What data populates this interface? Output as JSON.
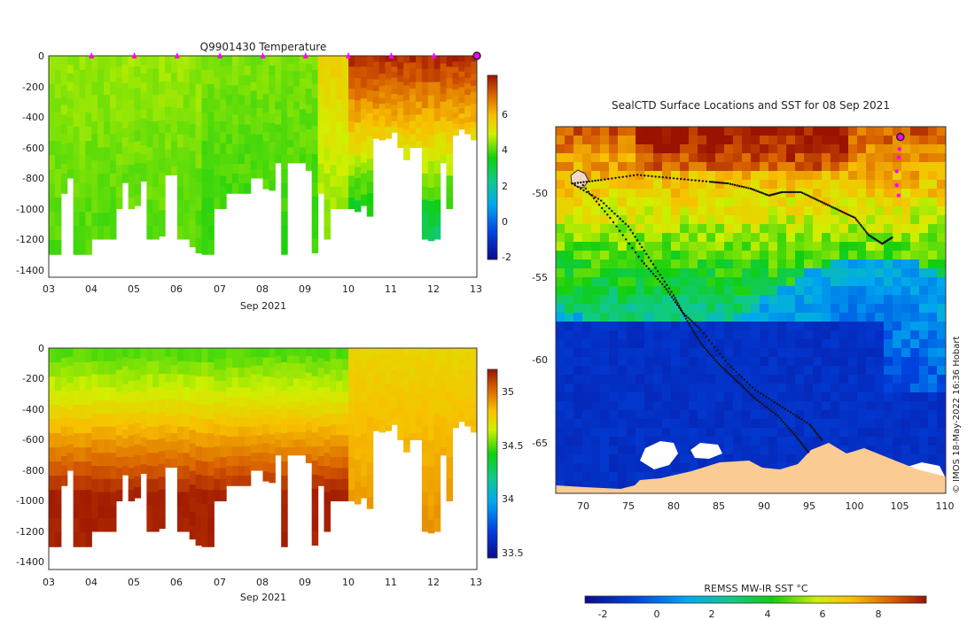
{
  "colors": {
    "land": "#fbcb94",
    "marker": "#ff00ff",
    "background": "#ffffff"
  },
  "chart_data": [
    {
      "id": "temperature",
      "type": "heatmap",
      "title": "Q9901430  Temperature",
      "xlabel": "Sep 2021",
      "ylabel": "",
      "x_tick_labels": [
        "03",
        "04",
        "05",
        "06",
        "07",
        "08",
        "09",
        "10",
        "11",
        "12",
        "13"
      ],
      "xlim": [
        3,
        13
      ],
      "ylim": [
        -1450,
        0
      ],
      "y_ticks": [
        0,
        -200,
        -400,
        -600,
        -800,
        -1000,
        -1200,
        -1400
      ],
      "colorbar": {
        "range": [
          -2.6,
          7.8
        ],
        "ticks": [
          -2,
          0,
          2,
          4,
          6
        ]
      },
      "marker_days": [
        4,
        5,
        6,
        7,
        8,
        9,
        10,
        11,
        12
      ],
      "current_day": 13
    },
    {
      "id": "salinity",
      "type": "heatmap",
      "title": "",
      "xlabel": "Sep 2021",
      "ylabel": "",
      "x_tick_labels": [
        "03",
        "04",
        "05",
        "06",
        "07",
        "08",
        "09",
        "10",
        "11",
        "12",
        "13"
      ],
      "xlim": [
        3,
        13
      ],
      "ylim": [
        -1450,
        0
      ],
      "y_ticks": [
        0,
        -200,
        -400,
        -600,
        -800,
        -1000,
        -1200,
        -1400
      ],
      "colorbar": {
        "range": [
          33.45,
          35.2
        ],
        "ticks": [
          33.5,
          34,
          34.5,
          35
        ]
      }
    },
    {
      "id": "sst-map",
      "type": "heatmap",
      "title": "SealCTD Surface Locations and SST for 08 Sep 2021",
      "xlabel": "",
      "ylabel": "",
      "x_ticks": [
        70,
        75,
        80,
        85,
        90,
        95,
        100,
        105,
        110
      ],
      "y_ticks": [
        -50,
        -55,
        -60,
        -65
      ],
      "xlim": [
        67,
        110
      ],
      "ylim": [
        -67.5,
        -46.2
      ],
      "colorbar": {
        "label": "REMSS MW-IR SST °C",
        "range": [
          -3.2,
          9.6
        ],
        "ticks": [
          -2,
          0,
          2,
          4,
          6,
          8
        ]
      },
      "credit": "© IMOS 18-May-2022 16:36 Hobart",
      "tracks": [
        {
          "lon": [
            68.8,
            72,
            76,
            80,
            84,
            86,
            88.5,
            90.5,
            92,
            94,
            96,
            98,
            100,
            101.5,
            103,
            104.2
          ],
          "lat": [
            -49.5,
            -49.3,
            -49.0,
            -49.2,
            -49.4,
            -49.5,
            -49.8,
            -50.2,
            -50.0,
            -50.0,
            -50.5,
            -51.0,
            -51.5,
            -52.5,
            -53.0,
            -52.6
          ]
        },
        {
          "lon": [
            68.8,
            72,
            75,
            77.5,
            80,
            81.5,
            83,
            85,
            87,
            89,
            91.5,
            93.5,
            95
          ],
          "lat": [
            -49.5,
            -50.5,
            -52.0,
            -54.0,
            -56.0,
            -57.5,
            -58.8,
            -60.0,
            -61.0,
            -62.0,
            -63.0,
            -64.2,
            -65.2
          ]
        },
        {
          "lon": [
            70,
            73,
            76.5,
            79,
            81,
            83,
            86,
            89,
            92,
            95,
            96.5
          ],
          "lat": [
            -49.6,
            -51.5,
            -54.0,
            -55.5,
            -57.0,
            -58.0,
            -60.0,
            -61.5,
            -62.5,
            -63.5,
            -64.5
          ]
        }
      ],
      "recent_track": {
        "lon": [
          105,
          104.9,
          104.8,
          104.6,
          104.6,
          104.8
        ],
        "lat": [
          -46.8,
          -47.5,
          -48.0,
          -48.8,
          -49.6,
          -50.2
        ]
      },
      "current_position": {
        "lon": 105,
        "lat": -46.8
      },
      "colony": {
        "lon": 69.5,
        "lat": -49.3
      }
    }
  ]
}
